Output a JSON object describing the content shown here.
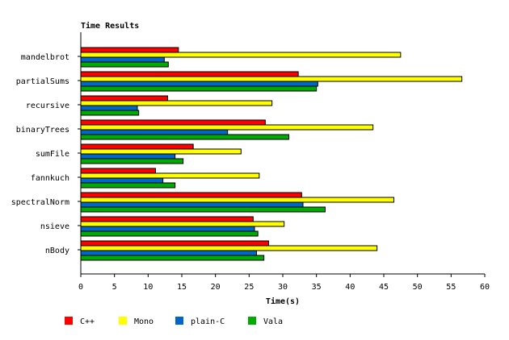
{
  "chart_data": {
    "type": "bar",
    "orientation": "horizontal",
    "title": "Time Results",
    "xlabel": "Time(s)",
    "ylabel": "",
    "xlim": [
      0,
      60
    ],
    "xticks": [
      "0",
      "5",
      "10",
      "15",
      "20",
      "25",
      "30",
      "35",
      "40",
      "45",
      "50",
      "55",
      "60"
    ],
    "grid": false,
    "legend_position": "bottom",
    "categories": [
      "mandelbrot",
      "partialSums",
      "recursive",
      "binaryTrees",
      "sumFile",
      "fannkuch",
      "spectralNorm",
      "nsieve",
      "nBody"
    ],
    "series": [
      {
        "name": "C++",
        "color": "#ff0000",
        "values": [
          14.5,
          32.3,
          12.9,
          27.4,
          16.7,
          11.1,
          32.8,
          25.6,
          27.9
        ]
      },
      {
        "name": "Mono",
        "color": "#ffff00",
        "values": [
          47.5,
          56.6,
          28.4,
          43.4,
          23.8,
          26.5,
          46.5,
          30.2,
          44.0
        ]
      },
      {
        "name": "plain-C",
        "color": "#0066cc",
        "values": [
          12.4,
          35.2,
          8.4,
          21.8,
          14.0,
          12.2,
          33.0,
          25.8,
          26.1
        ]
      },
      {
        "name": "Vala",
        "color": "#00aa00",
        "values": [
          13.0,
          35.0,
          8.6,
          30.9,
          15.2,
          14.0,
          36.3,
          26.3,
          27.2
        ]
      }
    ]
  }
}
